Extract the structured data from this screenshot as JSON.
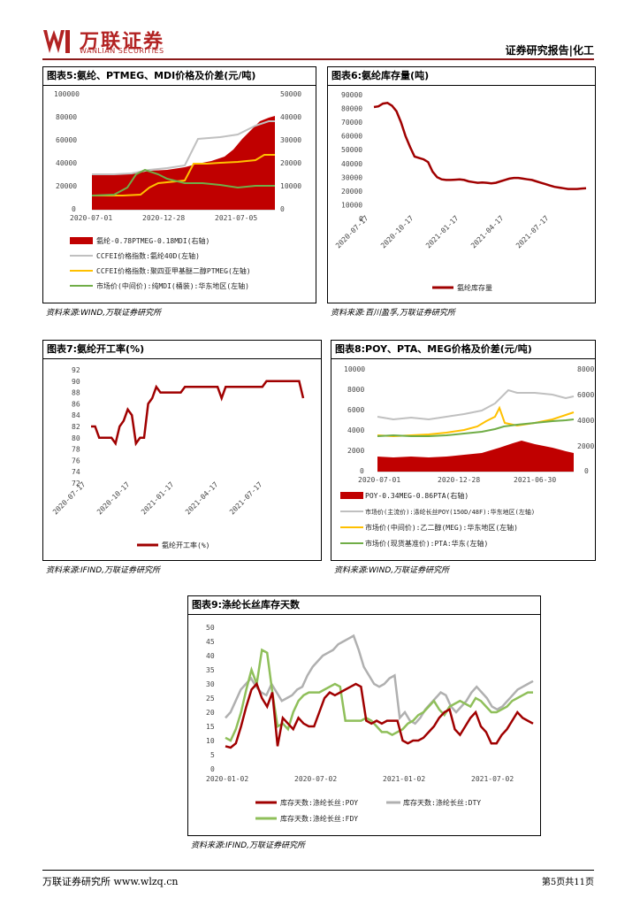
{
  "header": {
    "brand_cn": "万联证券",
    "brand_en": "WANLIAN SECURITIES",
    "report_type": "证券研究报告|化工"
  },
  "colors": {
    "darkred": "#b00000",
    "gray": "#b0b0b0",
    "orange": "#ffc000",
    "green": "#70ad47",
    "brand": "#b22222"
  },
  "fig5": {
    "title": "图表5:氨纶、PTMEG、MDI价格及价差(元/吨)",
    "source": "资料来源:WIND,万联证券研究所",
    "left_ticks": [
      "100000",
      "80000",
      "60000",
      "40000",
      "20000",
      "0"
    ],
    "right_ticks": [
      "50000",
      "40000",
      "30000",
      "20000",
      "10000",
      "0"
    ],
    "x_ticks": [
      "2020-07-01",
      "2020-12-28",
      "2021-07-05"
    ],
    "legend": [
      "氨纶-0.78PTMEG-0.18MDI(右轴)",
      "CCFEI价格指数:氨纶40D(左轴)",
      "CCFEI价格指数:聚四亚甲基醚二醇PTMEG(左轴)",
      "市场价(中间价):纯MDI(桶装):华东地区(左轴)"
    ]
  },
  "fig6": {
    "title": "图表6:氨纶库存量(吨)",
    "source": "资料来源:百川盈孚,万联证券研究所",
    "y_ticks": [
      "90000",
      "80000",
      "70000",
      "60000",
      "50000",
      "40000",
      "30000",
      "20000",
      "10000",
      "0"
    ],
    "x_ticks": [
      "2020-07-17",
      "2020-10-17",
      "2021-01-17",
      "2021-04-17",
      "2021-07-17"
    ],
    "legend": [
      "氨纶库存量"
    ]
  },
  "fig7": {
    "title": "图表7:氨纶开工率(%)",
    "source": "资料来源:IFIND,万联证券研究所",
    "y_ticks": [
      "92",
      "90",
      "88",
      "86",
      "84",
      "82",
      "80",
      "78",
      "76",
      "74",
      "72"
    ],
    "x_ticks": [
      "2020-07-17",
      "2020-10-17",
      "2021-01-17",
      "2021-04-17",
      "2021-07-17"
    ],
    "legend": [
      "氨纶开工率(%)"
    ]
  },
  "fig8": {
    "title": "图表8:POY、PTA、MEG价格及价差(元/吨)",
    "source": "资料来源:WIND,万联证券研究所",
    "left_ticks": [
      "10000",
      "8000",
      "6000",
      "4000",
      "2000",
      "0"
    ],
    "right_ticks": [
      "8000",
      "6000",
      "4000",
      "2000",
      "0"
    ],
    "x_ticks": [
      "2020-07-01",
      "2020-12-28",
      "2021-06-30"
    ],
    "legend": [
      "POY-0.34MEG-0.86PTA(右轴)",
      "市场价(主流价):涤纶长丝POY(150D/48F):华东地区(左轴)",
      "市场价(中间价):乙二醇(MEG):华东地区(左轴)",
      "市场价(现货基准价):PTA:华东(左轴)"
    ]
  },
  "fig9": {
    "title": "图表9:涤纶长丝库存天数",
    "source": "资料来源:IFIND,万联证券研究所",
    "y_ticks": [
      "50",
      "45",
      "40",
      "35",
      "30",
      "25",
      "20",
      "15",
      "10",
      "5",
      "0"
    ],
    "x_ticks": [
      "2020-01-02",
      "2020-07-02",
      "2021-01-02",
      "2021-07-02"
    ],
    "legend": [
      "库存天数:涤纶长丝:POY",
      "库存天数:涤纶长丝:DTY",
      "库存天数:涤纶长丝:FDY"
    ]
  },
  "chart_data": [
    {
      "type": "line",
      "title": "图表6:氨纶库存量(吨)",
      "ylim": [
        0,
        90000
      ],
      "series": [
        {
          "name": "氨纶库存量",
          "values": [
            81000,
            81500,
            83500,
            84000,
            82000,
            78000,
            70000,
            60000,
            52000,
            45000,
            44000,
            43000,
            41000,
            34000,
            30000,
            28500,
            28000,
            28000,
            28200,
            28400,
            28000,
            27000,
            26500,
            26000,
            26200,
            26000,
            25500,
            26000,
            27000,
            28000,
            29000,
            29500,
            29500,
            29000,
            28500,
            28000,
            27000,
            26000,
            25000,
            24000,
            23000,
            22500,
            22000,
            21500,
            21500,
            21500,
            21800,
            22000
          ]
        }
      ]
    },
    {
      "type": "line",
      "title": "图表7:氨纶开工率(%)",
      "ylim": [
        72,
        92
      ],
      "series": [
        {
          "name": "氨纶开工率(%)",
          "values": [
            82,
            82,
            80,
            80,
            80,
            80,
            79,
            82,
            83,
            85,
            84,
            79,
            80,
            80,
            86,
            87,
            89,
            88,
            88,
            88,
            88,
            88,
            88,
            89,
            89,
            89,
            89,
            89,
            89,
            89,
            89,
            89,
            87,
            89,
            89,
            89,
            89,
            89,
            89,
            89,
            89,
            89,
            89,
            90,
            90,
            90,
            90,
            90,
            90,
            90,
            90,
            90,
            87
          ]
        }
      ]
    },
    {
      "type": "line",
      "title": "图表9:涤纶长丝库存天数",
      "ylim": [
        0,
        50
      ],
      "series": [
        {
          "name": "库存天数:涤纶长丝:POY",
          "values": [
            8,
            7.5,
            9,
            15,
            22,
            28,
            30,
            25,
            22,
            27,
            8,
            18,
            16,
            14,
            18,
            16,
            15,
            15,
            20,
            25,
            27,
            26,
            27,
            28,
            29,
            30,
            29,
            17,
            16,
            17,
            16,
            17,
            17,
            17,
            10,
            9,
            10,
            10,
            11,
            13,
            15,
            18,
            20,
            21,
            14,
            12,
            15,
            18,
            20,
            15,
            13,
            9,
            9,
            12,
            14,
            17,
            20,
            18,
            17,
            16
          ]
        },
        {
          "name": "库存天数:涤纶长丝:DTY",
          "values": [
            18,
            20,
            24,
            28,
            30,
            32,
            29,
            27,
            26,
            30,
            27,
            24,
            25,
            26,
            28,
            29,
            33,
            36,
            38,
            40,
            41,
            42,
            44,
            45,
            46,
            47,
            42,
            36,
            33,
            30,
            29,
            30,
            32,
            33,
            18,
            20,
            17,
            16,
            18,
            21,
            23,
            25,
            27,
            26,
            22,
            20,
            22,
            24,
            27,
            29,
            27,
            25,
            22,
            21,
            22,
            24,
            26,
            28,
            29,
            30,
            31
          ]
        },
        {
          "name": "库存天数:涤纶长丝:FDY",
          "values": [
            11,
            10,
            14,
            20,
            28,
            35,
            30,
            42,
            41,
            27,
            15,
            16,
            14,
            20,
            24,
            26,
            27,
            27,
            27,
            28,
            29,
            30,
            29,
            17,
            17,
            17,
            17,
            18,
            17,
            15,
            13,
            13,
            12,
            13,
            14,
            16,
            17,
            19,
            20,
            22,
            24,
            21,
            19,
            22,
            23,
            24,
            23,
            22,
            25,
            24,
            22,
            20,
            20,
            21,
            22,
            24,
            25,
            26,
            27,
            27
          ]
        }
      ]
    },
    {
      "type": "line",
      "title": "图表5:氨纶、PTMEG、MDI价格及价差(元/吨)",
      "series": [
        {
          "name": "氨纶-0.78PTMEG-0.18MDI(右轴)",
          "values": [
            15000,
            15000,
            15000,
            15500,
            16000,
            18000,
            20000,
            22000,
            24000,
            27000,
            29000,
            32000,
            35000,
            38000,
            40000,
            42000,
            40000,
            36000
          ]
        },
        {
          "name": "CCFEI价格指数:氨纶40D(左轴)",
          "values": [
            29000,
            29000,
            29000,
            31000,
            33000,
            36000,
            37000,
            38000,
            38000,
            52000,
            62000,
            62000,
            63000,
            65000,
            70000,
            75000,
            80000,
            78000
          ]
        },
        {
          "name": "CCFEI价格指数:聚四亚甲基醚二醇PTMEG(左轴)",
          "values": [
            13000,
            13000,
            13000,
            14000,
            16000,
            18000,
            20000,
            21000,
            21500,
            22000,
            40000,
            40000,
            39000,
            38000,
            38000,
            43000,
            47000,
            47000
          ]
        },
        {
          "name": "市场价(中间价):纯MDI(桶装):华东地区(左轴)",
          "values": [
            13000,
            13000,
            15000,
            20000,
            33000,
            38000,
            35000,
            30000,
            25000,
            23000,
            22000,
            24000,
            22000,
            21000,
            20000,
            19000,
            20000,
            20000
          ]
        }
      ]
    },
    {
      "type": "line",
      "title": "图表8:POY、PTA、MEG价格及价差(元/吨)",
      "series": [
        {
          "name": "POY-0.34MEG-0.86PTA(右轴)",
          "values": [
            1200,
            1000,
            1100,
            1000,
            1100,
            1000,
            1200,
            1000,
            1300,
            1500,
            1700,
            1900,
            2000,
            2100,
            2200,
            2300,
            2200,
            1800,
            1600,
            1500
          ]
        },
        {
          "name": "市场价(主流价):涤纶长丝POY(150D/48F):华东地区(左轴)",
          "values": [
            5300,
            5000,
            5200,
            5000,
            5200,
            5000,
            5300,
            5400,
            5600,
            5700,
            6000,
            6200,
            7800,
            7700,
            7400,
            7500,
            7500,
            7300,
            7400,
            7600
          ]
        },
        {
          "name": "市场价(中间价):乙二醇(MEG):华东地区(左轴)",
          "values": [
            3500,
            3400,
            3600,
            3500,
            3600,
            3700,
            3900,
            3800,
            4000,
            4200,
            4500,
            4800,
            6100,
            5400,
            4800,
            4700,
            4600,
            4800,
            5000,
            5500
          ]
        },
        {
          "name": "市场价(现货基准价):PTA:华东(左轴)",
          "values": [
            3500,
            3400,
            3500,
            3400,
            3500,
            3400,
            3500,
            3600,
            3700,
            3800,
            3900,
            4100,
            4400,
            4700,
            4600,
            4800,
            4900,
            5000,
            4800,
            5000
          ]
        }
      ]
    }
  ],
  "footer": {
    "left": "万联证券研究所 www.wlzq.cn",
    "right": "第5页共11页"
  }
}
